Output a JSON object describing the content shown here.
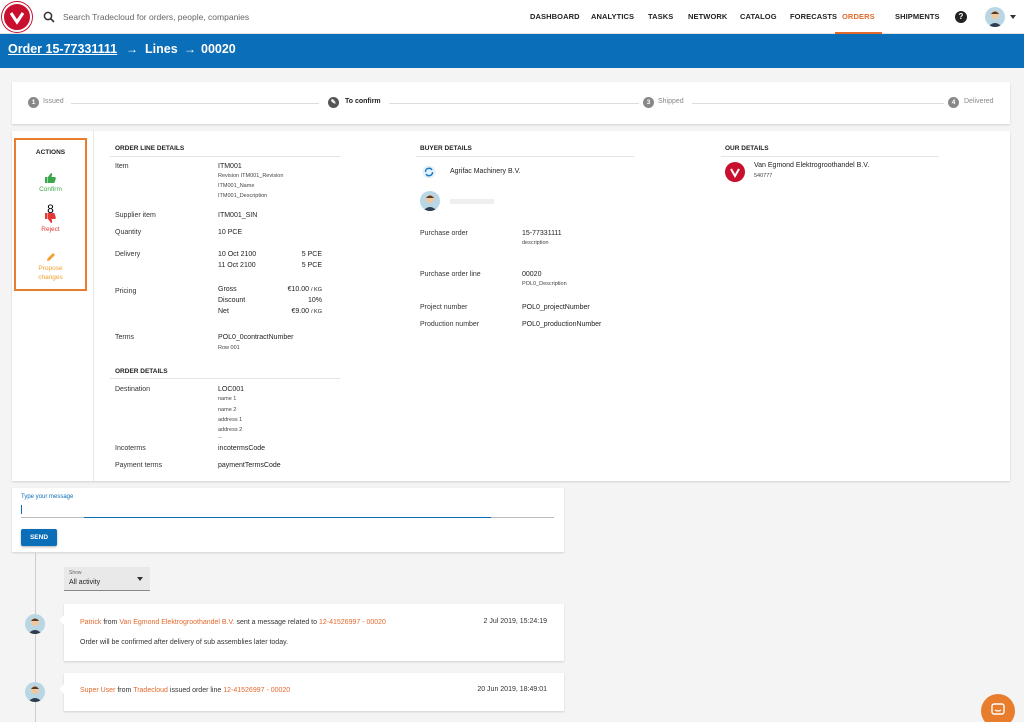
{
  "nav": {
    "search_placeholder": "Search Tradecloud for orders, people, companies",
    "items": [
      "DASHBOARD",
      "ANALYTICS",
      "TASKS",
      "NETWORK",
      "CATALOG",
      "FORECASTS",
      "ORDERS",
      "SHIPMENTS"
    ],
    "active": "ORDERS",
    "help": "?"
  },
  "header": {
    "crumbs": [
      "Order 15-77331111",
      "Lines",
      "00020"
    ]
  },
  "stepper": {
    "steps": [
      {
        "num": "1",
        "label": "Issued"
      },
      {
        "num": "",
        "label": "To confirm"
      },
      {
        "num": "3",
        "label": "Shipped"
      },
      {
        "num": "4",
        "label": "Delivered"
      }
    ]
  },
  "actions": {
    "title": "ACTIONS",
    "confirm": "Confirm",
    "count": "8",
    "reject": "Reject",
    "propose_line1": "Propose",
    "propose_line2": "changes"
  },
  "order_line": {
    "title": "ORDER LINE DETAILS",
    "item_label": "Item",
    "item_value": "ITM001",
    "item_sub": [
      "Revision ITM001_Revision",
      "ITM001_Name",
      "ITM001_Description"
    ],
    "supplier_item_label": "Supplier item",
    "supplier_item_value": "ITM001_SIN",
    "quantity_label": "Quantity",
    "quantity_value": "10 PCE",
    "delivery_label": "Delivery",
    "deliveries": [
      {
        "date": "10 Oct 2100",
        "qty": "5 PCE"
      },
      {
        "date": "11 Oct 2100",
        "qty": "5 PCE"
      }
    ],
    "pricing_label": "Pricing",
    "pricing": [
      {
        "name": "Gross",
        "amount": "€10.00",
        "unit": "/ KG"
      },
      {
        "name": "Discount",
        "amount": "10%",
        "unit": ""
      },
      {
        "name": "Net",
        "amount": "€9.00",
        "unit": "/ KG"
      }
    ],
    "terms_label": "Terms",
    "terms_value": "POL0_0contractNumber",
    "terms_sub": "Row 001"
  },
  "order_details": {
    "title": "ORDER DETAILS",
    "destination_label": "Destination",
    "destination_value": "LOC001",
    "destination_sub": [
      "name 1",
      "name 2",
      "address 1",
      "address 2",
      "--"
    ],
    "incoterms_label": "Incoterms",
    "incoterms_value": "incotermsCode",
    "payment_label": "Payment terms",
    "payment_value": "paymentTermsCode"
  },
  "buyer": {
    "title": "BUYER DETAILS",
    "company": "Agrifac Machinery B.V.",
    "po_label": "Purchase order",
    "po_value": "15-77331111",
    "po_sub": "description",
    "pol_label": "Purchase order line",
    "pol_value": "00020",
    "pol_sub": "POL0_Description",
    "project_label": "Project number",
    "project_value": "POL0_projectNumber",
    "production_label": "Production number",
    "production_value": "POL0_productionNumber"
  },
  "our": {
    "title": "OUR DETAILS",
    "company": "Van Egmond Elektrogroothandel B.V.",
    "code": "540777"
  },
  "message": {
    "label": "Type your message",
    "send": "SEND"
  },
  "activity": {
    "show_label": "Show",
    "show_value": "All activity",
    "entries": [
      {
        "user": "Patrick",
        "from": "from",
        "company": "Van Egmond Elektrogroothandel B.V.",
        "action": "sent a message related to",
        "ref": "12-41526997 - 00020",
        "time": "2 Jul 2019, 15:24:19",
        "body": "Order will be confirmed after delivery of sub assemblies later today."
      },
      {
        "user": "Super User",
        "from": "from",
        "company": "Tradecloud",
        "action": "issued order line",
        "ref": "12-41526997 - 00020",
        "time": "20 Jun 2019, 18:49:01",
        "body": ""
      }
    ]
  },
  "colors": {
    "brand": "#0b6eb8",
    "accent": "#e36a2e",
    "confirm": "#3aa84a",
    "reject": "#e53935",
    "propose": "#f0a030"
  }
}
